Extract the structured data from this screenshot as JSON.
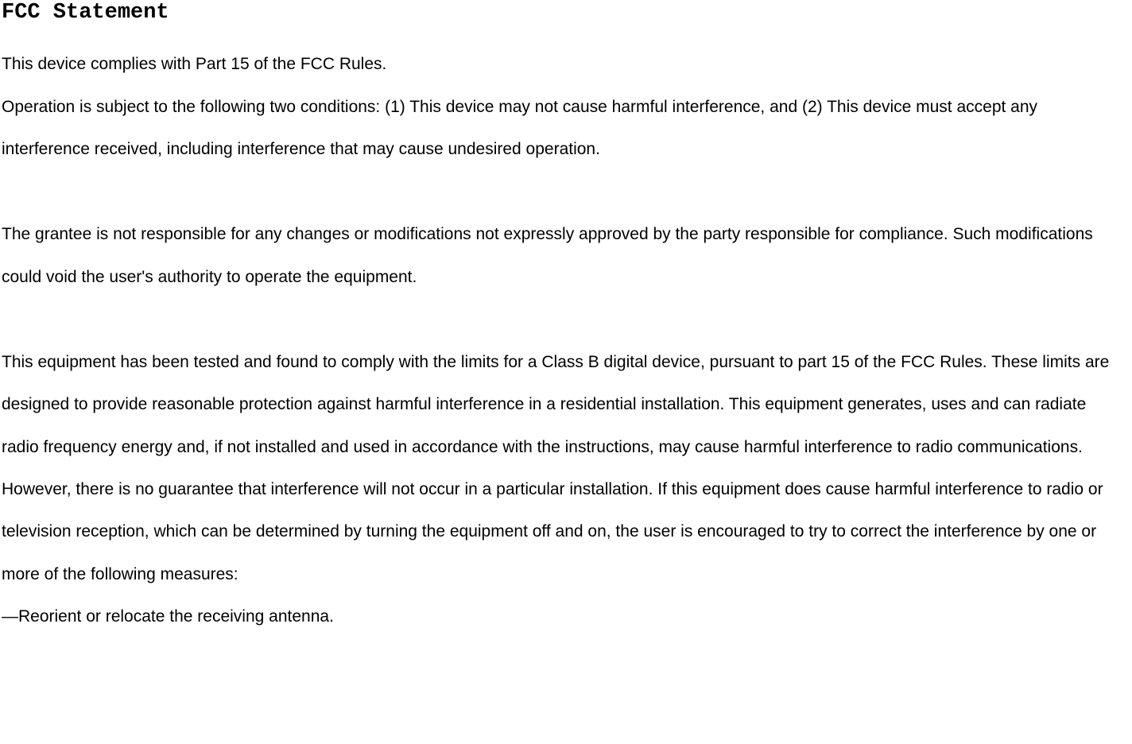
{
  "document": {
    "heading": "FCC Statement",
    "heading_font_family": "SimSun, NSimSun, Courier New, monospace",
    "heading_font_size": 27,
    "heading_font_weight": "bold",
    "body_font_family": "Arial, Helvetica, sans-serif",
    "body_font_size": 21,
    "body_line_height": 2.54,
    "text_color": "#000000",
    "background_color": "#ffffff",
    "paragraphs": [
      "This device complies with Part 15 of the FCC Rules.",
      "Operation is subject to the following two conditions: (1) This device may not cause harmful interference, and (2) This device must accept any interference received, including interference that may cause undesired operation.",
      "The grantee is not responsible for any changes or modifications not expressly approved by the party responsible for compliance. Such modifications could void the user's authority to operate the equipment.",
      "This equipment has been tested and found to comply with the limits for a Class B digital device, pursuant to part 15 of the FCC  Rules. These limits are designed to provide reasonable protection against harmful interference in a residential installation. This equipment generates, uses and can radiate radio frequency energy and, if not installed and used in accordance with the instructions, may cause harmful interference to radio communications. However, there is no guarantee that interference will not occur in a particular installation. If this equipment does cause harmful interference to radio or television reception, which can be determined by turning the equipment off and on, the user is encouraged to try to correct the interference by one or more of the following measures:",
      "—Reorient or relocate the receiving antenna."
    ]
  }
}
